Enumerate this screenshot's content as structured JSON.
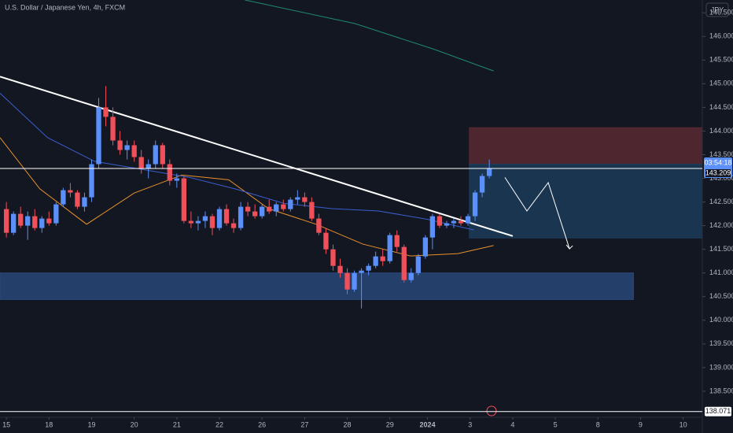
{
  "chart_data": {
    "type": "candlestick",
    "title": "U.S. Dollar / Japanese Yen, 4h, FXCM",
    "currency": "JPY",
    "up_color": "#5b8ff9",
    "down_color": "#f0505a",
    "x": [
      0,
      1,
      2,
      3,
      4,
      5,
      6,
      7,
      8,
      9,
      10,
      11,
      12,
      13,
      14,
      15,
      16,
      17,
      18,
      19,
      20,
      21,
      22,
      23,
      24,
      25,
      26,
      27,
      28,
      29,
      30,
      31,
      32,
      33,
      34,
      35,
      36,
      37,
      38,
      39,
      40,
      41,
      42,
      43,
      44,
      45,
      46,
      47,
      48,
      49,
      50,
      51,
      52,
      53,
      54,
      55,
      56,
      57,
      58,
      59,
      60,
      61,
      62,
      63,
      64,
      65,
      66,
      67,
      68
    ],
    "open": [
      142.35,
      141.85,
      142.25,
      142.0,
      142.2,
      141.95,
      142.15,
      142.05,
      142.45,
      142.75,
      142.7,
      142.4,
      142.6,
      143.3,
      144.5,
      144.3,
      143.8,
      143.6,
      143.7,
      143.45,
      143.2,
      143.3,
      143.7,
      143.3,
      142.95,
      143.0,
      142.1,
      142.05,
      142.1,
      142.2,
      141.95,
      142.35,
      142.05,
      141.95,
      142.4,
      142.3,
      142.2,
      142.4,
      142.3,
      142.45,
      142.35,
      142.55,
      142.6,
      142.5,
      142.15,
      141.85,
      141.5,
      141.15,
      141.0,
      140.65,
      141.0,
      141.05,
      141.15,
      141.35,
      141.25,
      141.8,
      141.55,
      140.85,
      141.0,
      141.35,
      141.75,
      142.2,
      142.0,
      142.05,
      142.1,
      142.05,
      142.2,
      142.7,
      143.05
    ],
    "high": [
      142.5,
      142.3,
      142.4,
      142.3,
      142.35,
      142.2,
      142.3,
      142.5,
      142.8,
      142.9,
      142.75,
      142.7,
      143.4,
      144.7,
      144.95,
      144.5,
      144.0,
      143.8,
      143.8,
      143.6,
      143.4,
      143.8,
      143.75,
      143.4,
      143.1,
      143.05,
      142.3,
      142.2,
      142.3,
      142.25,
      142.4,
      142.45,
      142.15,
      142.5,
      142.5,
      142.45,
      142.45,
      142.55,
      142.5,
      142.55,
      142.6,
      142.75,
      142.7,
      142.6,
      142.25,
      141.95,
      141.6,
      141.3,
      141.1,
      141.05,
      141.1,
      141.2,
      141.45,
      141.5,
      141.85,
      141.9,
      141.6,
      141.1,
      141.4,
      141.8,
      142.25,
      142.25,
      142.1,
      142.15,
      142.2,
      142.25,
      142.75,
      143.1,
      143.4
    ],
    "low": [
      141.75,
      141.8,
      141.95,
      141.7,
      141.9,
      141.85,
      142.0,
      142.0,
      142.4,
      142.6,
      142.35,
      142.3,
      142.5,
      143.2,
      144.1,
      143.7,
      143.5,
      143.4,
      143.35,
      143.1,
      143.0,
      143.2,
      143.2,
      142.85,
      142.8,
      142.05,
      141.95,
      141.9,
      141.95,
      141.8,
      141.9,
      142.0,
      141.85,
      141.9,
      142.2,
      142.15,
      142.15,
      142.25,
      142.2,
      142.3,
      142.3,
      142.45,
      142.4,
      142.1,
      141.8,
      141.4,
      141.05,
      140.9,
      140.55,
      140.6,
      140.25,
      140.95,
      141.1,
      141.15,
      141.2,
      141.45,
      140.8,
      140.8,
      140.95,
      141.3,
      141.5,
      141.95,
      141.95,
      141.95,
      142.0,
      142.0,
      142.1,
      142.6,
      143.0
    ],
    "close": [
      141.85,
      142.25,
      142.0,
      142.2,
      141.95,
      142.15,
      142.05,
      142.45,
      142.75,
      142.7,
      142.4,
      142.6,
      143.3,
      144.5,
      144.3,
      143.8,
      143.6,
      143.7,
      143.45,
      143.2,
      143.3,
      143.7,
      143.3,
      142.95,
      143.0,
      142.1,
      142.05,
      142.1,
      142.2,
      141.95,
      142.35,
      142.05,
      141.95,
      142.4,
      142.3,
      142.2,
      142.4,
      142.3,
      142.45,
      142.35,
      142.55,
      142.6,
      142.5,
      142.15,
      141.85,
      141.5,
      141.15,
      141.0,
      140.65,
      141.0,
      141.05,
      141.15,
      141.35,
      141.25,
      141.8,
      141.55,
      140.85,
      141.0,
      141.35,
      141.75,
      142.2,
      142.0,
      142.05,
      142.1,
      142.05,
      142.2,
      142.7,
      143.05,
      143.209
    ],
    "xlim": [
      -0.9,
      98
    ],
    "ylim": [
      137.95,
      146.77
    ],
    "yticks": [
      {
        "value": 138.5,
        "label": "138.500"
      },
      {
        "value": 139,
        "label": "139.000"
      },
      {
        "value": 139.5,
        "label": "139.500"
      },
      {
        "value": 140,
        "label": "140.000"
      },
      {
        "value": 140.5,
        "label": "140.500"
      },
      {
        "value": 141,
        "label": "141.000"
      },
      {
        "value": 141.5,
        "label": "141.500"
      },
      {
        "value": 142,
        "label": "142.000"
      },
      {
        "value": 142.5,
        "label": "142.500"
      },
      {
        "value": 143,
        "label": "143.000"
      },
      {
        "value": 143.5,
        "label": "143.500"
      },
      {
        "value": 144,
        "label": "144.000"
      },
      {
        "value": 144.5,
        "label": "144.500"
      },
      {
        "value": 145,
        "label": "145.000"
      },
      {
        "value": 145.5,
        "label": "145.500"
      },
      {
        "value": 146,
        "label": "146.000"
      },
      {
        "value": 146.5,
        "label": "146.500"
      }
    ],
    "xticks": [
      {
        "value": 0,
        "label": "15"
      },
      {
        "value": 6,
        "label": "18"
      },
      {
        "value": 12,
        "label": "19"
      },
      {
        "value": 18,
        "label": "20"
      },
      {
        "value": 24,
        "label": "21"
      },
      {
        "value": 30,
        "label": "22"
      },
      {
        "value": 36,
        "label": "26"
      },
      {
        "value": 42,
        "label": "27"
      },
      {
        "value": 48,
        "label": "28"
      },
      {
        "value": 54,
        "label": "29"
      },
      {
        "value": 59.3,
        "label": "2024"
      },
      {
        "value": 65.3,
        "label": "3"
      },
      {
        "value": 71.3,
        "label": "4"
      },
      {
        "value": 77.3,
        "label": "5"
      },
      {
        "value": 83.3,
        "label": "8"
      },
      {
        "value": 89.3,
        "label": "9"
      },
      {
        "value": 95.3,
        "label": "10"
      }
    ],
    "price_line": 143.209,
    "countdown": "03:54:18",
    "low_line": 138.071,
    "zones": [
      {
        "color": "#5c2a33",
        "x0": 65.2,
        "x1": 98,
        "top": 144.07,
        "bottom": 143.3
      },
      {
        "color": "#1d3d5c",
        "x0": 65.2,
        "x1": 98,
        "top": 143.3,
        "bottom": 141.74
      },
      {
        "color": "#2b4a7e",
        "x0": -0.9,
        "x1": 88.3,
        "top": 141.0,
        "bottom": 140.44
      }
    ],
    "overlays": [
      {
        "color": "#e8912d",
        "x": [
          -0.9,
          4.7,
          11.3,
          18,
          24.7,
          31.3,
          36.9,
          43.6,
          50.2,
          56.9,
          63.6,
          68.6
        ],
        "values": [
          143.86,
          142.78,
          142.03,
          142.69,
          143.07,
          142.97,
          142.36,
          142.03,
          141.61,
          141.36,
          141.41,
          141.58
        ]
      },
      {
        "color": "#3a5fd0",
        "x": [
          -0.9,
          5.8,
          12.4,
          19.1,
          25.8,
          32.4,
          39.1,
          45.8,
          52.4,
          59.1,
          65.8
        ],
        "values": [
          144.8,
          143.86,
          143.36,
          143.19,
          143.02,
          142.77,
          142.47,
          142.36,
          142.31,
          142.14,
          141.91
        ]
      },
      {
        "color": "#1f8a70",
        "x": [
          33.6,
          49.1,
          60.2,
          68.6
        ],
        "values": [
          146.77,
          146.27,
          145.73,
          145.27
        ]
      },
      {
        "color": "#ffffff",
        "x": [
          -0.9,
          71.3
        ],
        "values": [
          145.15,
          141.78
        ]
      },
      {
        "color": "#ffffff",
        "x": [
          70.2,
          73.3,
          76.3,
          79.3
        ],
        "values": [
          143.02,
          142.31,
          142.91,
          141.51
        ]
      }
    ]
  }
}
